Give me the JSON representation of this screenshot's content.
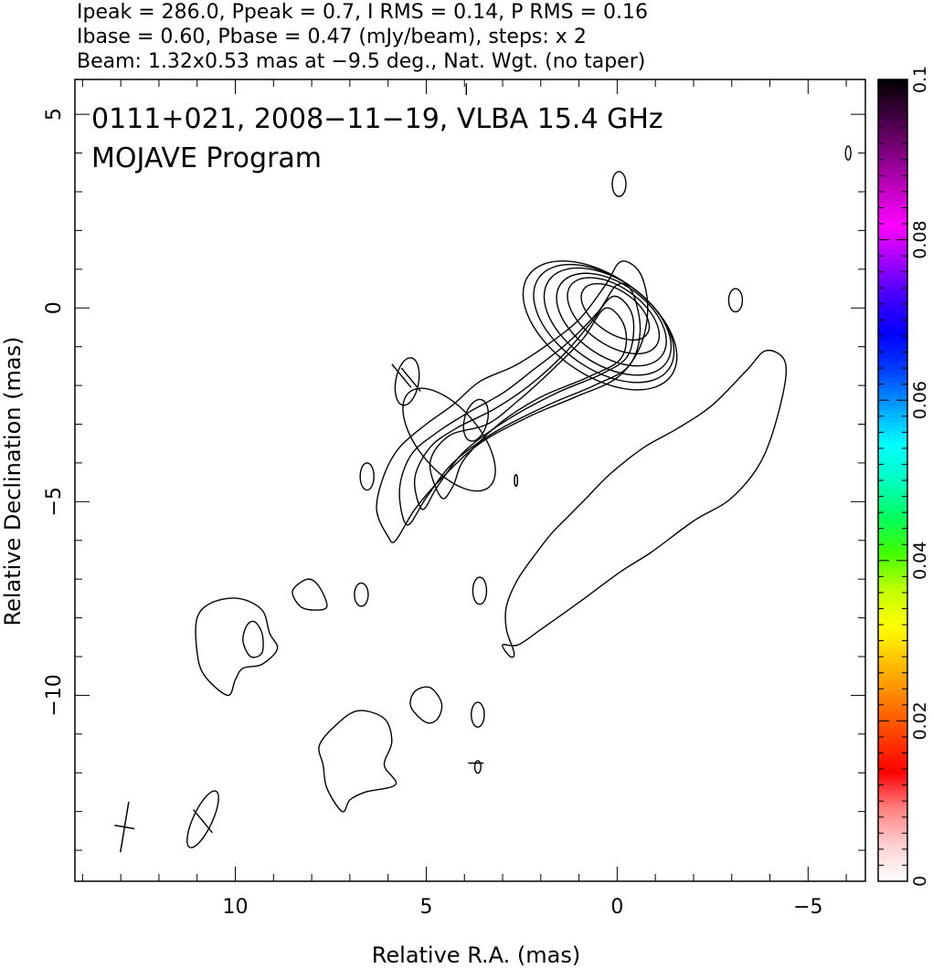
{
  "header": {
    "line1": "Ipeak = 286.0, Ppeak = 0.7, I RMS = 0.14, P RMS = 0.16",
    "line2": "Ibase = 0.60, Pbase = 0.47 (mJy/beam), steps: x 2",
    "line3": "Beam: 1.32x0.53 mas at −9.5 deg., Nat. Wgt. (no taper)"
  },
  "chart_data": {
    "type": "contour",
    "title": "0111+021, 2008−11−19, VLBA 15.4 GHz",
    "subtitle": "MOJAVE Program",
    "xlabel": "Relative R.A. (mas)",
    "ylabel": "Relative Declination (mas)",
    "xlim": [
      14.2,
      -6.5
    ],
    "ylim": [
      -14.8,
      5.9
    ],
    "x_ticks": [
      {
        "v": 10,
        "label": "10"
      },
      {
        "v": 5,
        "label": "5"
      },
      {
        "v": 0,
        "label": "0"
      },
      {
        "v": -5,
        "label": "−5"
      }
    ],
    "y_ticks": [
      {
        "v": 5,
        "label": "5"
      },
      {
        "v": 0,
        "label": "0"
      },
      {
        "v": -5,
        "label": "−5"
      },
      {
        "v": -10,
        "label": "−10"
      }
    ],
    "x_minor_step": 1,
    "y_minor_step": 1,
    "core_levels": [
      {
        "cx": 0.05,
        "cy": -0.1,
        "rx": 0.55,
        "ry": 1.0,
        "angle": 125
      },
      {
        "cx": 0.1,
        "cy": -0.2,
        "rx": 0.75,
        "ry": 1.35,
        "angle": 125
      },
      {
        "cx": 0.15,
        "cy": -0.3,
        "rx": 0.95,
        "ry": 1.6,
        "angle": 125
      },
      {
        "cx": 0.25,
        "cy": -0.35,
        "rx": 1.1,
        "ry": 1.85,
        "angle": 125
      },
      {
        "cx": 0.35,
        "cy": -0.4,
        "rx": 1.2,
        "ry": 2.05,
        "angle": 125
      },
      {
        "cx": 0.45,
        "cy": -0.45,
        "rx": 1.3,
        "ry": 2.25,
        "angle": 125
      }
    ],
    "knot_levels": [
      {
        "cx": 3.7,
        "cy": -2.9,
        "rx": 0.3,
        "ry": 0.55,
        "angle": 15
      },
      {
        "cx": 4.4,
        "cy": -3.4,
        "rx": 0.8,
        "ry": 1.6,
        "angle": 140
      }
    ],
    "jet_envelopes": [
      [
        [
          6.0,
          -5.9
        ],
        [
          6.3,
          -5.2
        ],
        [
          6.1,
          -4.3
        ],
        [
          5.7,
          -3.6
        ],
        [
          5.0,
          -3.0
        ],
        [
          4.3,
          -2.5
        ],
        [
          3.6,
          -1.9
        ],
        [
          2.7,
          -1.5
        ],
        [
          1.9,
          -1.0
        ],
        [
          1.0,
          -0.3
        ],
        [
          0.3,
          0.6
        ],
        [
          -0.1,
          1.2
        ],
        [
          -0.6,
          0.9
        ],
        [
          -0.8,
          0.0
        ],
        [
          -0.6,
          -1.0
        ],
        [
          0.0,
          -1.8
        ],
        [
          1.1,
          -2.3
        ],
        [
          2.3,
          -2.8
        ],
        [
          3.6,
          -3.5
        ],
        [
          4.6,
          -4.4
        ],
        [
          5.3,
          -5.2
        ],
        [
          5.8,
          -6.0
        ]
      ],
      [
        [
          5.5,
          -5.6
        ],
        [
          5.7,
          -4.7
        ],
        [
          5.4,
          -3.8
        ],
        [
          4.7,
          -3.2
        ],
        [
          3.9,
          -2.7
        ],
        [
          3.0,
          -2.2
        ],
        [
          2.2,
          -1.6
        ],
        [
          1.3,
          -0.9
        ],
        [
          0.5,
          -0.1
        ],
        [
          0.0,
          0.6
        ],
        [
          -0.4,
          0.4
        ],
        [
          -0.6,
          -0.6
        ],
        [
          -0.3,
          -1.5
        ],
        [
          0.6,
          -2.0
        ],
        [
          1.8,
          -2.5
        ],
        [
          3.2,
          -3.2
        ],
        [
          4.3,
          -4.0
        ],
        [
          5.0,
          -4.9
        ]
      ],
      [
        [
          5.1,
          -5.2
        ],
        [
          5.3,
          -4.4
        ],
        [
          4.9,
          -3.6
        ],
        [
          4.2,
          -3.1
        ],
        [
          3.2,
          -2.6
        ],
        [
          2.3,
          -2.0
        ],
        [
          1.4,
          -1.2
        ],
        [
          0.7,
          -0.4
        ],
        [
          0.1,
          0.3
        ],
        [
          -0.4,
          -0.2
        ],
        [
          -0.3,
          -1.2
        ],
        [
          0.4,
          -1.7
        ],
        [
          1.6,
          -2.2
        ],
        [
          2.9,
          -2.9
        ],
        [
          4.0,
          -3.7
        ],
        [
          4.7,
          -4.6
        ]
      ],
      [
        [
          4.6,
          -4.9
        ],
        [
          4.9,
          -4.0
        ],
        [
          4.4,
          -3.3
        ],
        [
          3.4,
          -3.0
        ],
        [
          2.6,
          -2.4
        ],
        [
          1.7,
          -1.6
        ],
        [
          0.9,
          -0.8
        ],
        [
          0.3,
          0.0
        ],
        [
          -0.2,
          -0.5
        ],
        [
          -0.1,
          -1.3
        ],
        [
          0.8,
          -1.8
        ],
        [
          2.0,
          -2.3
        ],
        [
          3.1,
          -3.0
        ],
        [
          4.0,
          -3.9
        ],
        [
          4.3,
          -4.6
        ]
      ]
    ],
    "outer_contours": [
      [
        [
          3.0,
          -8.7
        ],
        [
          2.8,
          -9.0
        ],
        [
          2.7,
          -8.9
        ],
        [
          2.9,
          -8.3
        ],
        [
          2.9,
          -7.7
        ],
        [
          2.6,
          -7.0
        ],
        [
          2.1,
          -6.3
        ],
        [
          1.7,
          -5.8
        ],
        [
          1.3,
          -5.4
        ],
        [
          0.8,
          -4.9
        ],
        [
          0.2,
          -4.3
        ],
        [
          -0.7,
          -3.6
        ],
        [
          -1.6,
          -3.1
        ],
        [
          -2.5,
          -2.5
        ],
        [
          -3.4,
          -1.6
        ],
        [
          -3.9,
          -1.1
        ],
        [
          -4.4,
          -1.4
        ],
        [
          -4.3,
          -2.4
        ],
        [
          -3.8,
          -3.9
        ],
        [
          -3.0,
          -4.9
        ],
        [
          -2.0,
          -5.5
        ],
        [
          -0.9,
          -6.3
        ],
        [
          -0.1,
          -6.8
        ],
        [
          1.0,
          -7.6
        ],
        [
          2.0,
          -8.3
        ],
        [
          2.6,
          -8.7
        ]
      ],
      [
        [
          10.2,
          -10.0
        ],
        [
          10.8,
          -9.5
        ],
        [
          11.0,
          -8.9
        ],
        [
          11.0,
          -8.0
        ],
        [
          10.6,
          -7.6
        ],
        [
          9.9,
          -7.5
        ],
        [
          9.3,
          -7.8
        ],
        [
          9.1,
          -8.4
        ],
        [
          8.9,
          -8.8
        ],
        [
          9.3,
          -9.2
        ],
        [
          9.8,
          -9.3
        ],
        [
          10.0,
          -9.6
        ]
      ],
      [
        [
          7.2,
          -13.0
        ],
        [
          7.6,
          -12.4
        ],
        [
          7.7,
          -11.8
        ],
        [
          7.8,
          -11.3
        ],
        [
          7.4,
          -10.8
        ],
        [
          6.8,
          -10.4
        ],
        [
          6.1,
          -10.6
        ],
        [
          5.9,
          -11.2
        ],
        [
          6.1,
          -11.8
        ],
        [
          5.8,
          -12.3
        ],
        [
          6.6,
          -12.5
        ],
        [
          7.0,
          -12.7
        ]
      ],
      [
        [
          8.3,
          -7.7
        ],
        [
          8.5,
          -7.3
        ],
        [
          8.1,
          -7.0
        ],
        [
          7.8,
          -7.2
        ],
        [
          7.6,
          -7.7
        ],
        [
          7.9,
          -7.8
        ]
      ],
      [
        [
          5.0,
          -10.7
        ],
        [
          5.4,
          -10.3
        ],
        [
          5.3,
          -9.9
        ],
        [
          4.9,
          -9.8
        ],
        [
          4.6,
          -10.2
        ],
        [
          4.7,
          -10.6
        ]
      ]
    ],
    "inner_contours": [
      [
        [
          9.7,
          -8.2
        ],
        [
          9.8,
          -8.6
        ],
        [
          9.6,
          -9.0
        ],
        [
          9.3,
          -8.9
        ],
        [
          9.3,
          -8.4
        ],
        [
          9.5,
          -8.1
        ]
      ]
    ],
    "blobs": [
      {
        "cx": -0.05,
        "cy": 3.2,
        "rx": 0.18,
        "ry": 0.32,
        "angle": 0
      },
      {
        "cx": -3.1,
        "cy": 0.2,
        "rx": 0.18,
        "ry": 0.3,
        "angle": 0
      },
      {
        "cx": -6.05,
        "cy": 4.0,
        "rx": 0.07,
        "ry": 0.18,
        "angle": 0
      },
      {
        "cx": 6.55,
        "cy": -4.35,
        "rx": 0.18,
        "ry": 0.35,
        "angle": 0
      },
      {
        "cx": 6.7,
        "cy": -7.4,
        "rx": 0.18,
        "ry": 0.3,
        "angle": 0
      },
      {
        "cx": 3.6,
        "cy": -7.3,
        "rx": 0.18,
        "ry": 0.35,
        "angle": 0
      },
      {
        "cx": 3.65,
        "cy": -10.5,
        "rx": 0.17,
        "ry": 0.32,
        "angle": 0
      },
      {
        "cx": 3.65,
        "cy": -11.85,
        "rx": 0.08,
        "ry": 0.16,
        "angle": 0
      },
      {
        "cx": 2.65,
        "cy": -4.45,
        "rx": 0.04,
        "ry": 0.15,
        "angle": 0
      },
      {
        "cx": 5.5,
        "cy": -1.9,
        "rx": 0.3,
        "ry": 0.62,
        "angle": 10
      },
      {
        "cx": 10.85,
        "cy": -13.2,
        "rx": 0.25,
        "ry": 0.8,
        "angle": 25
      }
    ],
    "pol_ticks": [
      {
        "x": 5.65,
        "y": -1.75,
        "dx": 0.25,
        "dy": 0.3
      },
      {
        "x": 5.4,
        "y": -1.85,
        "dx": 0.25,
        "dy": 0.3
      },
      {
        "x": 10.85,
        "y": -13.25,
        "dx": 0.25,
        "dy": 0.3
      },
      {
        "x": 3.7,
        "y": -11.75,
        "dx": 0.2,
        "dy": 0.0
      },
      {
        "x": 3.95,
        "y": 5.65,
        "dx": 0.0,
        "dy": 0.15
      }
    ],
    "beam_marker": {
      "x": 12.9,
      "y": -13.4,
      "major": 1.32,
      "minor": 0.53,
      "pa_deg": -9.5
    },
    "colorbar": {
      "min": 0,
      "max": 0.1,
      "ticks": [
        {
          "v": 0,
          "label": "0"
        },
        {
          "v": 0.02,
          "label": "0.02"
        },
        {
          "v": 0.04,
          "label": "0.04"
        },
        {
          "v": 0.06,
          "label": "0.06"
        },
        {
          "v": 0.08,
          "label": "0.08"
        },
        {
          "v": 0.1,
          "label": "0.1"
        }
      ],
      "colors": [
        "#ffffff",
        "#ffd0d0",
        "#ff8080",
        "#ff0000",
        "#ff4000",
        "#ff8000",
        "#ffc000",
        "#ffff00",
        "#c0ff00",
        "#40ff00",
        "#00ff60",
        "#00ffc0",
        "#00ffff",
        "#00a0ff",
        "#0040ff",
        "#0000ff",
        "#4000ff",
        "#a000ff",
        "#ff00ff",
        "#c000c0",
        "#800080",
        "#400040",
        "#000000"
      ]
    }
  }
}
